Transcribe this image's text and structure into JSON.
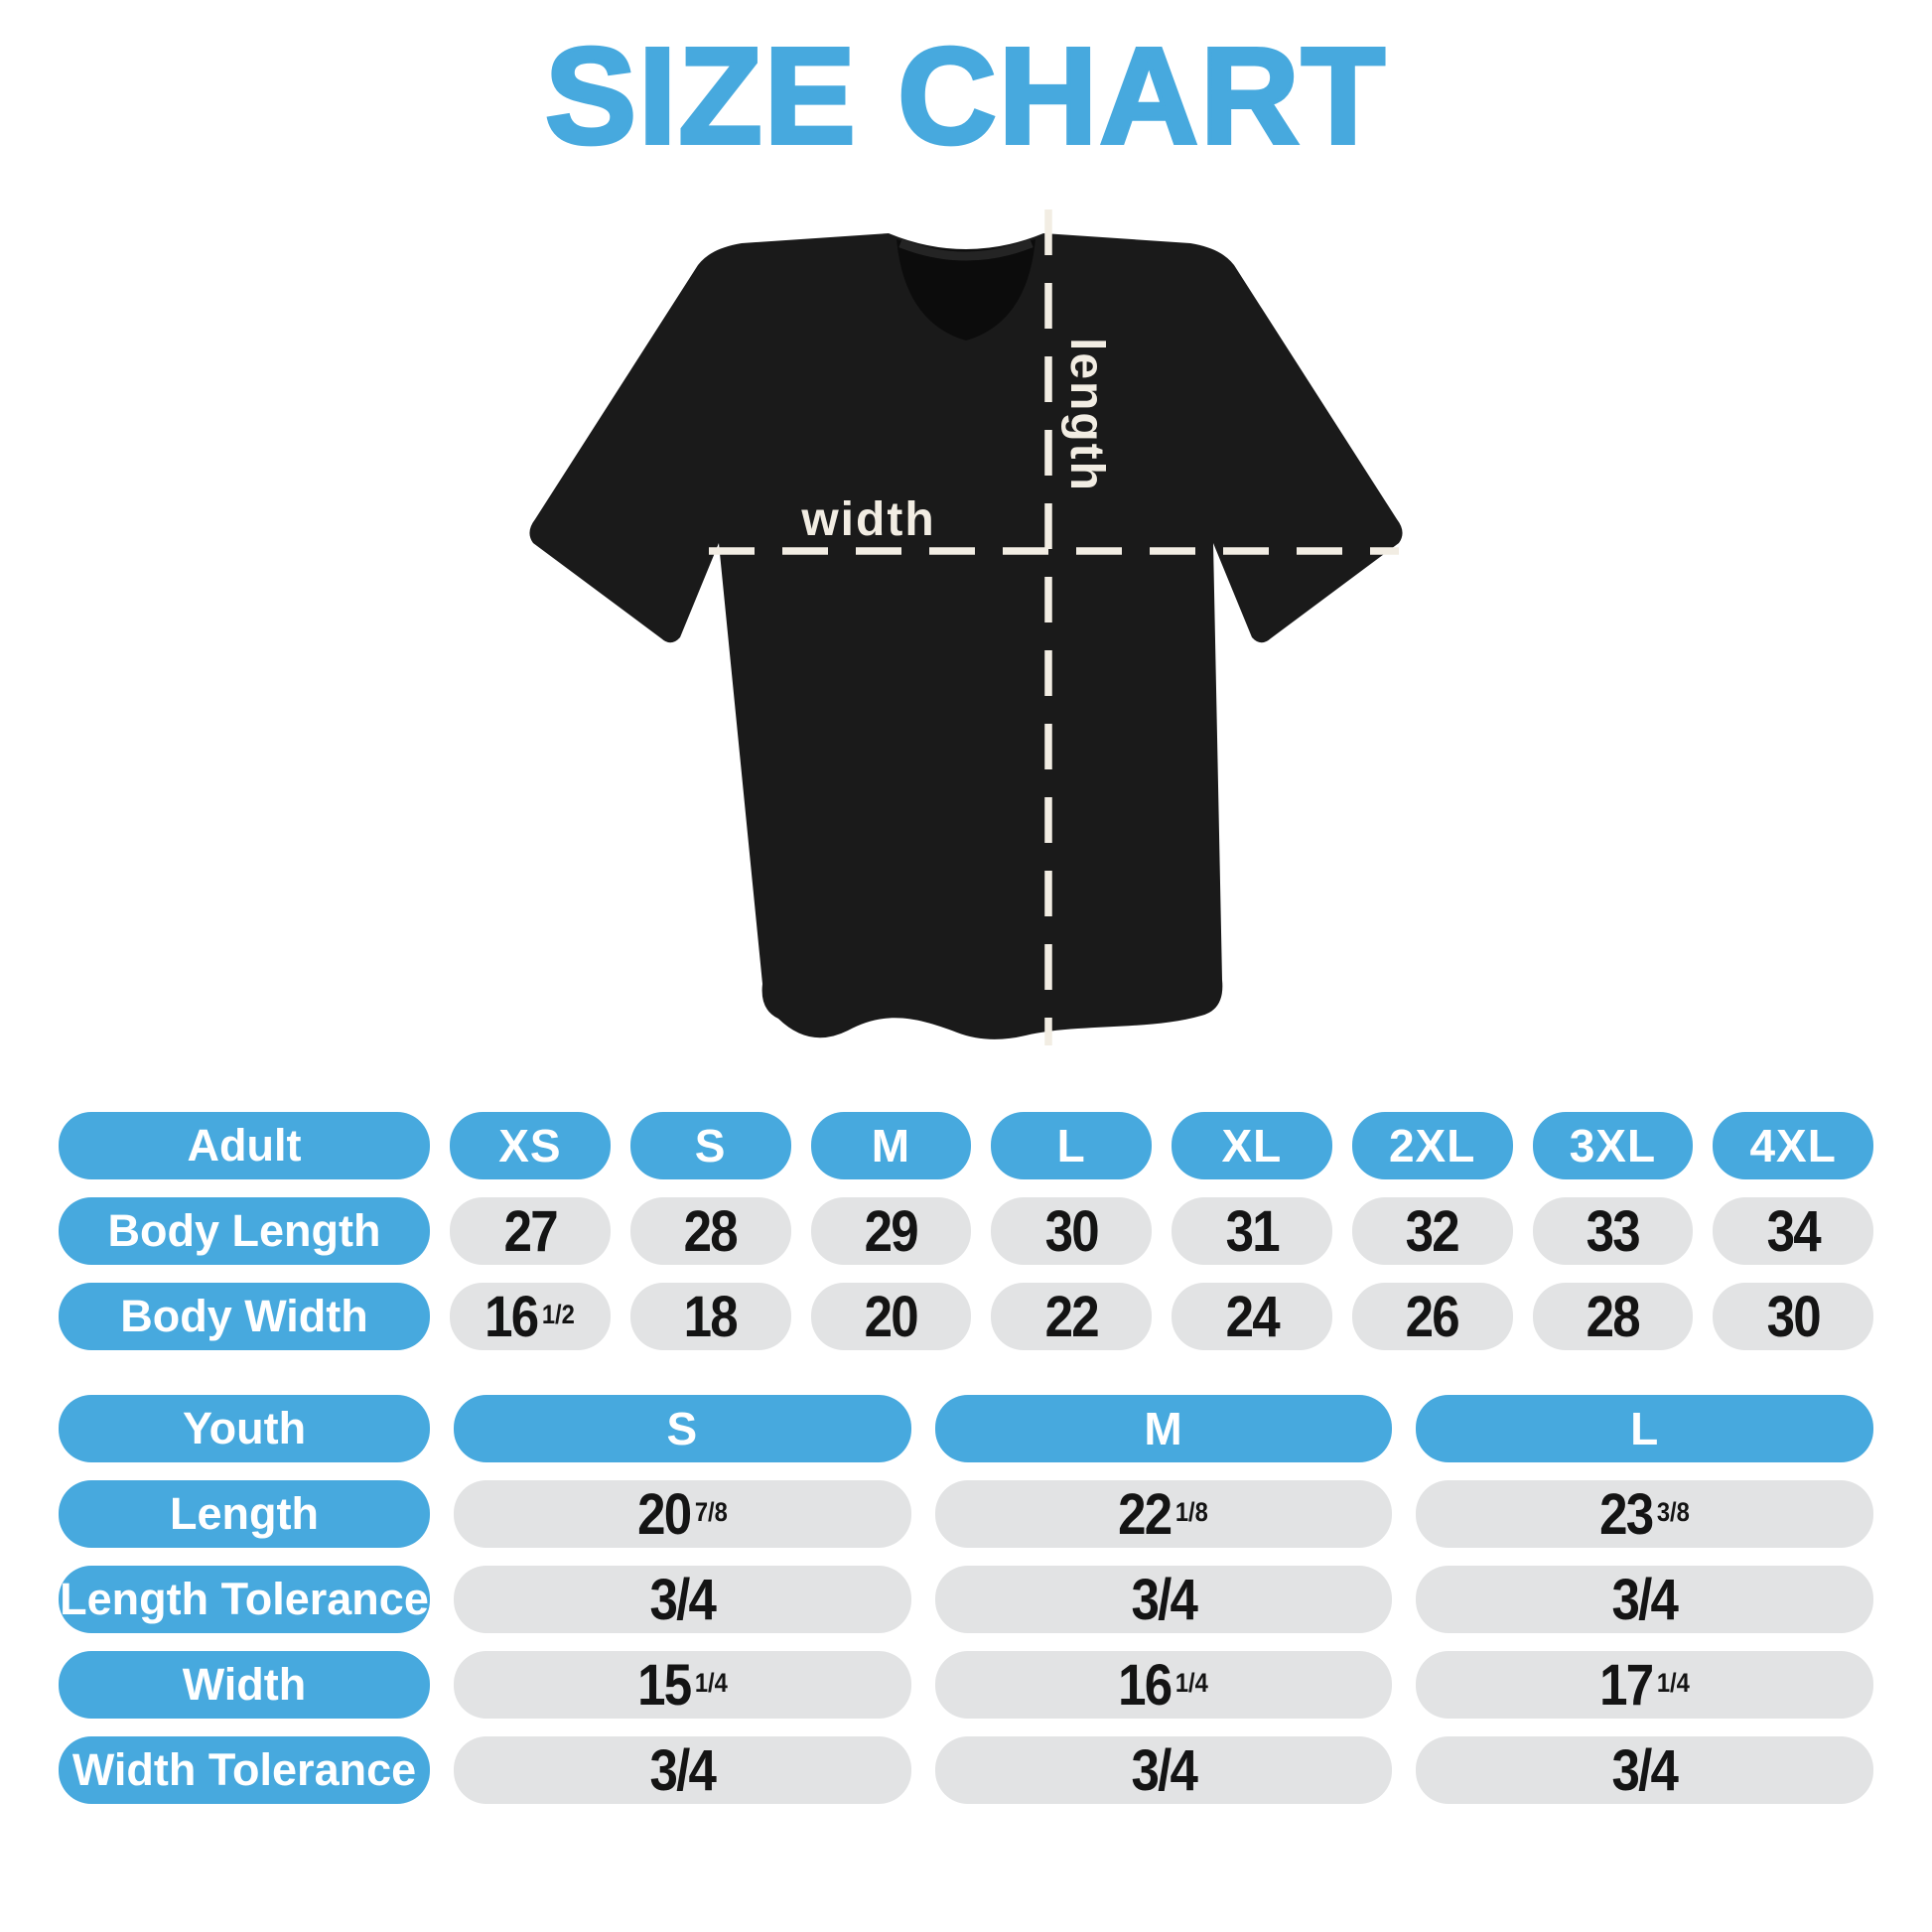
{
  "title": "SIZE CHART",
  "colors": {
    "accent_blue": "#47A9DE",
    "cell_gray": "#E2E3E4",
    "shirt_black": "#1a1a1a",
    "measure_cream": "#F2EDE3",
    "number_text": "#141414",
    "background": "#ffffff"
  },
  "diagram": {
    "width_label": "width",
    "length_label": "length"
  },
  "adult_table": {
    "header": {
      "label": "Adult",
      "sizes": [
        "XS",
        "S",
        "M",
        "L",
        "XL",
        "2XL",
        "3XL",
        "4XL"
      ]
    },
    "rows": [
      {
        "label": "Body Length",
        "values": [
          {
            "n": "27",
            "f": ""
          },
          {
            "n": "28",
            "f": ""
          },
          {
            "n": "29",
            "f": ""
          },
          {
            "n": "30",
            "f": ""
          },
          {
            "n": "31",
            "f": ""
          },
          {
            "n": "32",
            "f": ""
          },
          {
            "n": "33",
            "f": ""
          },
          {
            "n": "34",
            "f": ""
          }
        ]
      },
      {
        "label": "Body Width",
        "values": [
          {
            "n": "16",
            "f": "1/2"
          },
          {
            "n": "18",
            "f": ""
          },
          {
            "n": "20",
            "f": ""
          },
          {
            "n": "22",
            "f": ""
          },
          {
            "n": "24",
            "f": ""
          },
          {
            "n": "26",
            "f": ""
          },
          {
            "n": "28",
            "f": ""
          },
          {
            "n": "30",
            "f": ""
          }
        ]
      }
    ]
  },
  "youth_table": {
    "header": {
      "label": "Youth",
      "sizes": [
        "S",
        "M",
        "L"
      ]
    },
    "rows": [
      {
        "label": "Length",
        "values": [
          {
            "n": "20",
            "f": "7/8"
          },
          {
            "n": "22",
            "f": "1/8"
          },
          {
            "n": "23",
            "f": "3/8"
          }
        ]
      },
      {
        "label": "Length Tolerance",
        "values": [
          {
            "n": "3/4",
            "f": ""
          },
          {
            "n": "3/4",
            "f": ""
          },
          {
            "n": "3/4",
            "f": ""
          }
        ]
      },
      {
        "label": "Width",
        "values": [
          {
            "n": "15",
            "f": "1/4"
          },
          {
            "n": "16",
            "f": "1/4"
          },
          {
            "n": "17",
            "f": "1/4"
          }
        ]
      },
      {
        "label": "Width Tolerance",
        "values": [
          {
            "n": "3/4",
            "f": ""
          },
          {
            "n": "3/4",
            "f": ""
          },
          {
            "n": "3/4",
            "f": ""
          }
        ]
      }
    ]
  }
}
